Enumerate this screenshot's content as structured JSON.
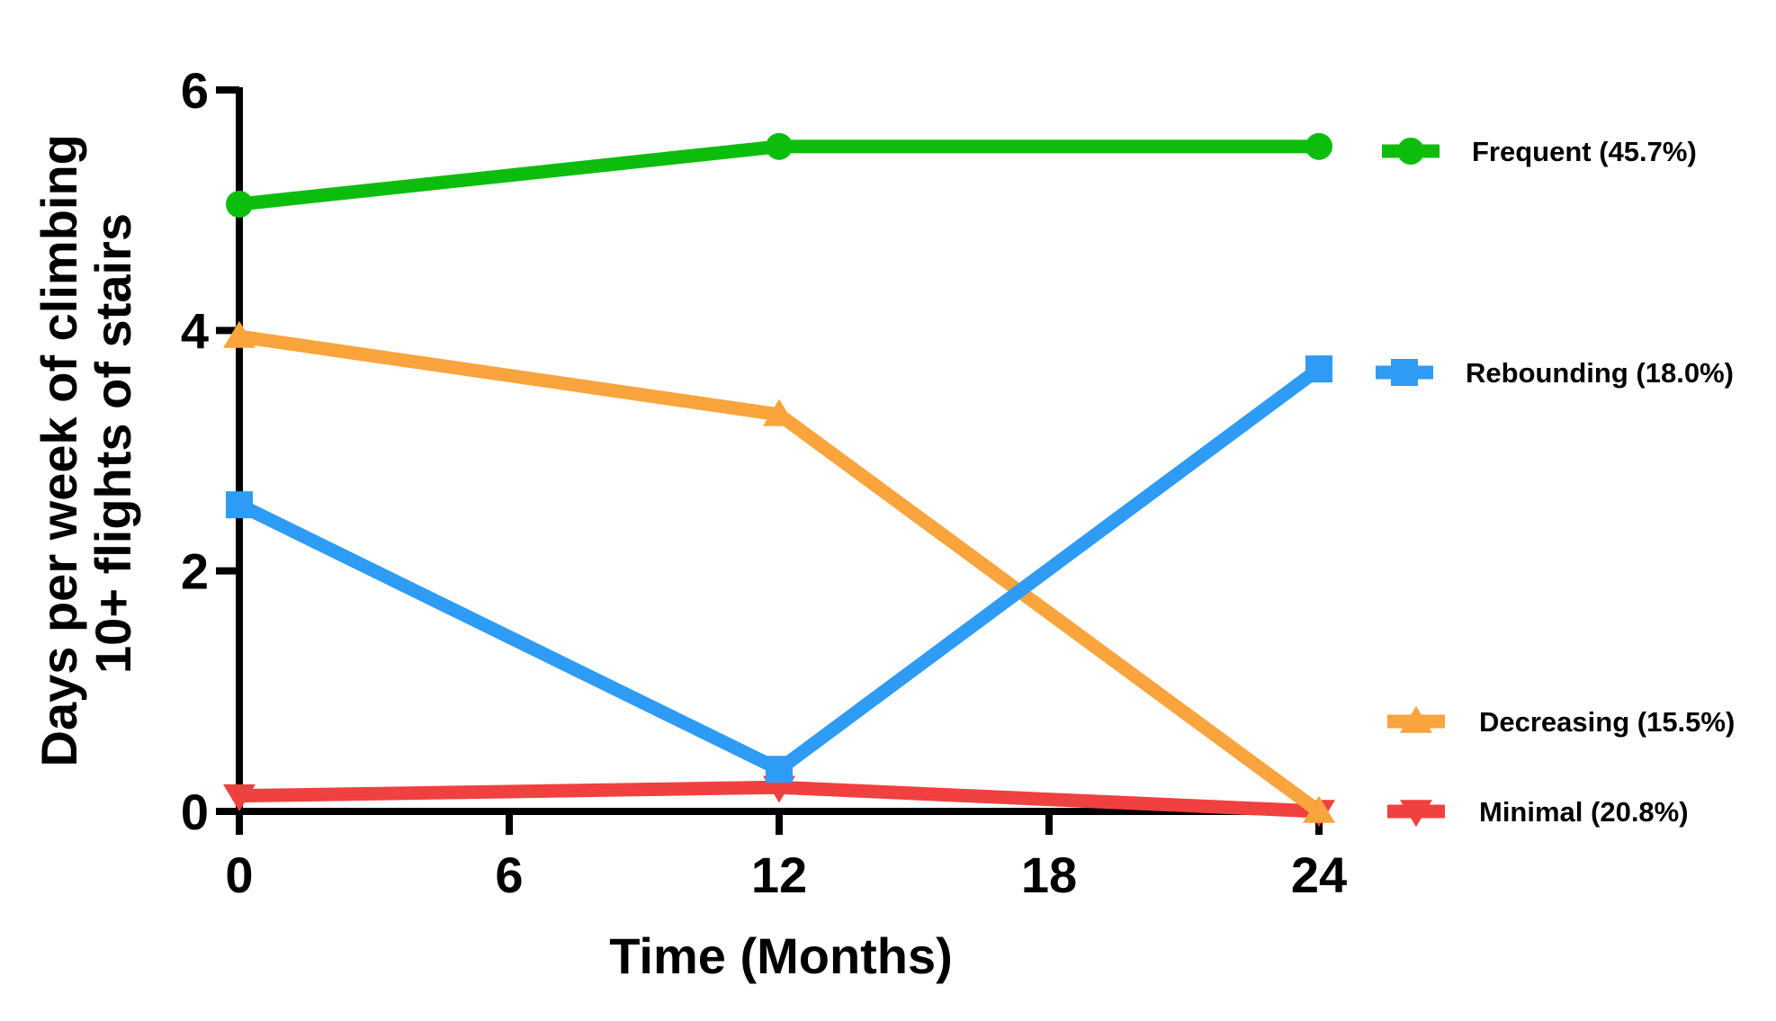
{
  "chart_data": {
    "type": "line",
    "xlabel": "Time (Months)",
    "ylabel_lines": [
      "Days per week of climbing",
      "10+ flights of stairs"
    ],
    "xlim": [
      0,
      24
    ],
    "ylim": [
      0,
      6
    ],
    "xticks": [
      "0",
      "6",
      "12",
      "18",
      "24"
    ],
    "yticks": [
      "0",
      "2",
      "4",
      "6"
    ],
    "grid": false,
    "legend_position": "right",
    "x": [
      0,
      12,
      24
    ],
    "series": [
      {
        "name": "Frequent (45.7%)",
        "values": [
          5.05,
          5.53,
          5.53
        ],
        "color": "#0dbd0d",
        "marker": "circle"
      },
      {
        "name": "Rebounding (18.0%)",
        "values": [
          2.55,
          0.35,
          3.68
        ],
        "color": "#2e9bf4",
        "marker": "square"
      },
      {
        "name": "Decreasing (15.5%)",
        "values": [
          3.95,
          3.3,
          0.0
        ],
        "color": "#f9a43c",
        "marker": "triangle-up"
      },
      {
        "name": "Minimal (20.8%)",
        "values": [
          0.13,
          0.2,
          0.0
        ],
        "color": "#f0403f",
        "marker": "triangle-down"
      }
    ]
  }
}
